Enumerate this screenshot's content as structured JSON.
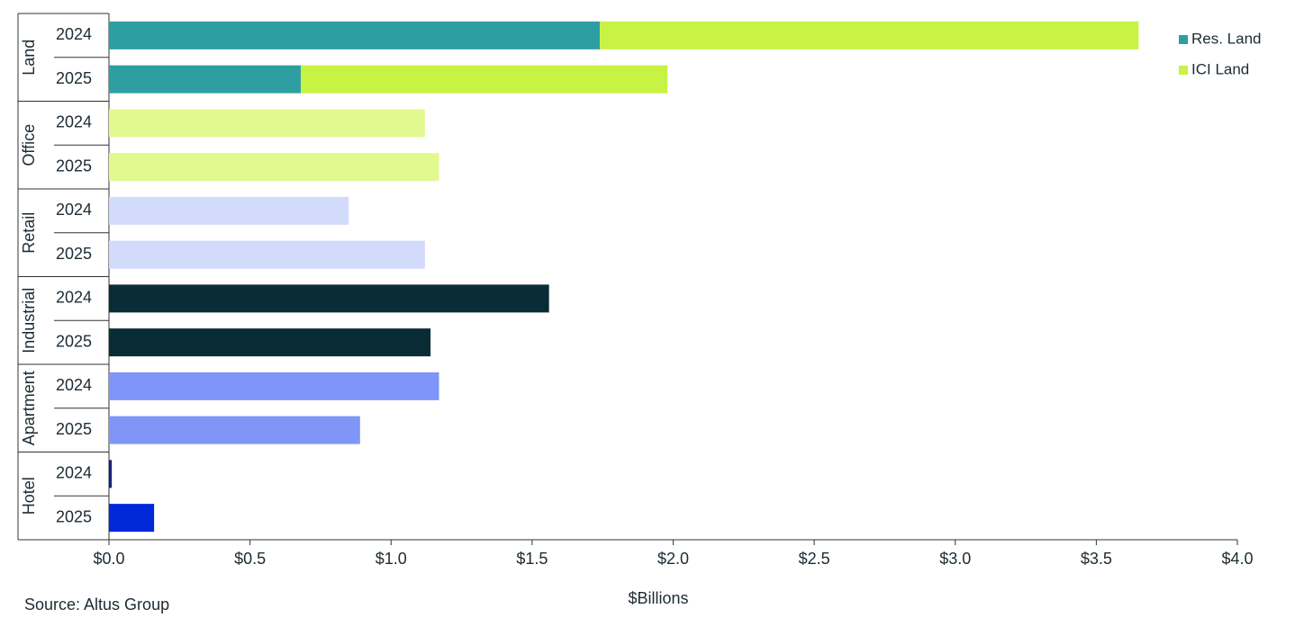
{
  "chart_data": {
    "type": "bar",
    "orientation": "horizontal",
    "stacked": true,
    "xlabel": "$Billions",
    "source": "Source:  Altus Group",
    "xlim": [
      0,
      4
    ],
    "xticks": [
      {
        "value": 0,
        "label": "$0.0"
      },
      {
        "value": 0.5,
        "label": "$0.5"
      },
      {
        "value": 1,
        "label": "$1.0"
      },
      {
        "value": 1.5,
        "label": "$1.5"
      },
      {
        "value": 2,
        "label": "$2.0"
      },
      {
        "value": 2.5,
        "label": "$2.5"
      },
      {
        "value": 3,
        "label": "$3.0"
      },
      {
        "value": 3.5,
        "label": "$3.5"
      },
      {
        "value": 4,
        "label": "$4.0"
      }
    ],
    "legend": "upper right",
    "groups": [
      {
        "label": "Land",
        "categories": [
          "2024",
          "2025"
        ],
        "series": [
          {
            "name": "Res. Land",
            "color": "#2d9fa3",
            "values": [
              1.74,
              0.68
            ]
          },
          {
            "name": "ICI Land",
            "color": "#c8f244",
            "values": [
              1.91,
              1.3
            ]
          }
        ]
      },
      {
        "label": "Office",
        "categories": [
          "2024",
          "2025"
        ],
        "colors": [
          "#e1f98f",
          "#e1f98f"
        ],
        "values": [
          1.12,
          1.17
        ]
      },
      {
        "label": "Retail",
        "categories": [
          "2024",
          "2025"
        ],
        "colors": [
          "#d3dbfd",
          "#d3dbfd"
        ],
        "values": [
          0.85,
          1.12
        ]
      },
      {
        "label": "Industrial",
        "categories": [
          "2024",
          "2025"
        ],
        "colors": [
          "#0a2c36",
          "#0a2c36"
        ],
        "values": [
          1.56,
          1.14
        ]
      },
      {
        "label": "Apartment",
        "categories": [
          "2024",
          "2025"
        ],
        "colors": [
          "#7f95f7",
          "#7f95f7"
        ],
        "values": [
          1.17,
          0.89
        ]
      },
      {
        "label": "Hotel",
        "categories": [
          "2024",
          "2025"
        ],
        "colors": [
          "#14237a",
          "#0028d8"
        ],
        "values": [
          0.01,
          0.16
        ]
      }
    ]
  }
}
